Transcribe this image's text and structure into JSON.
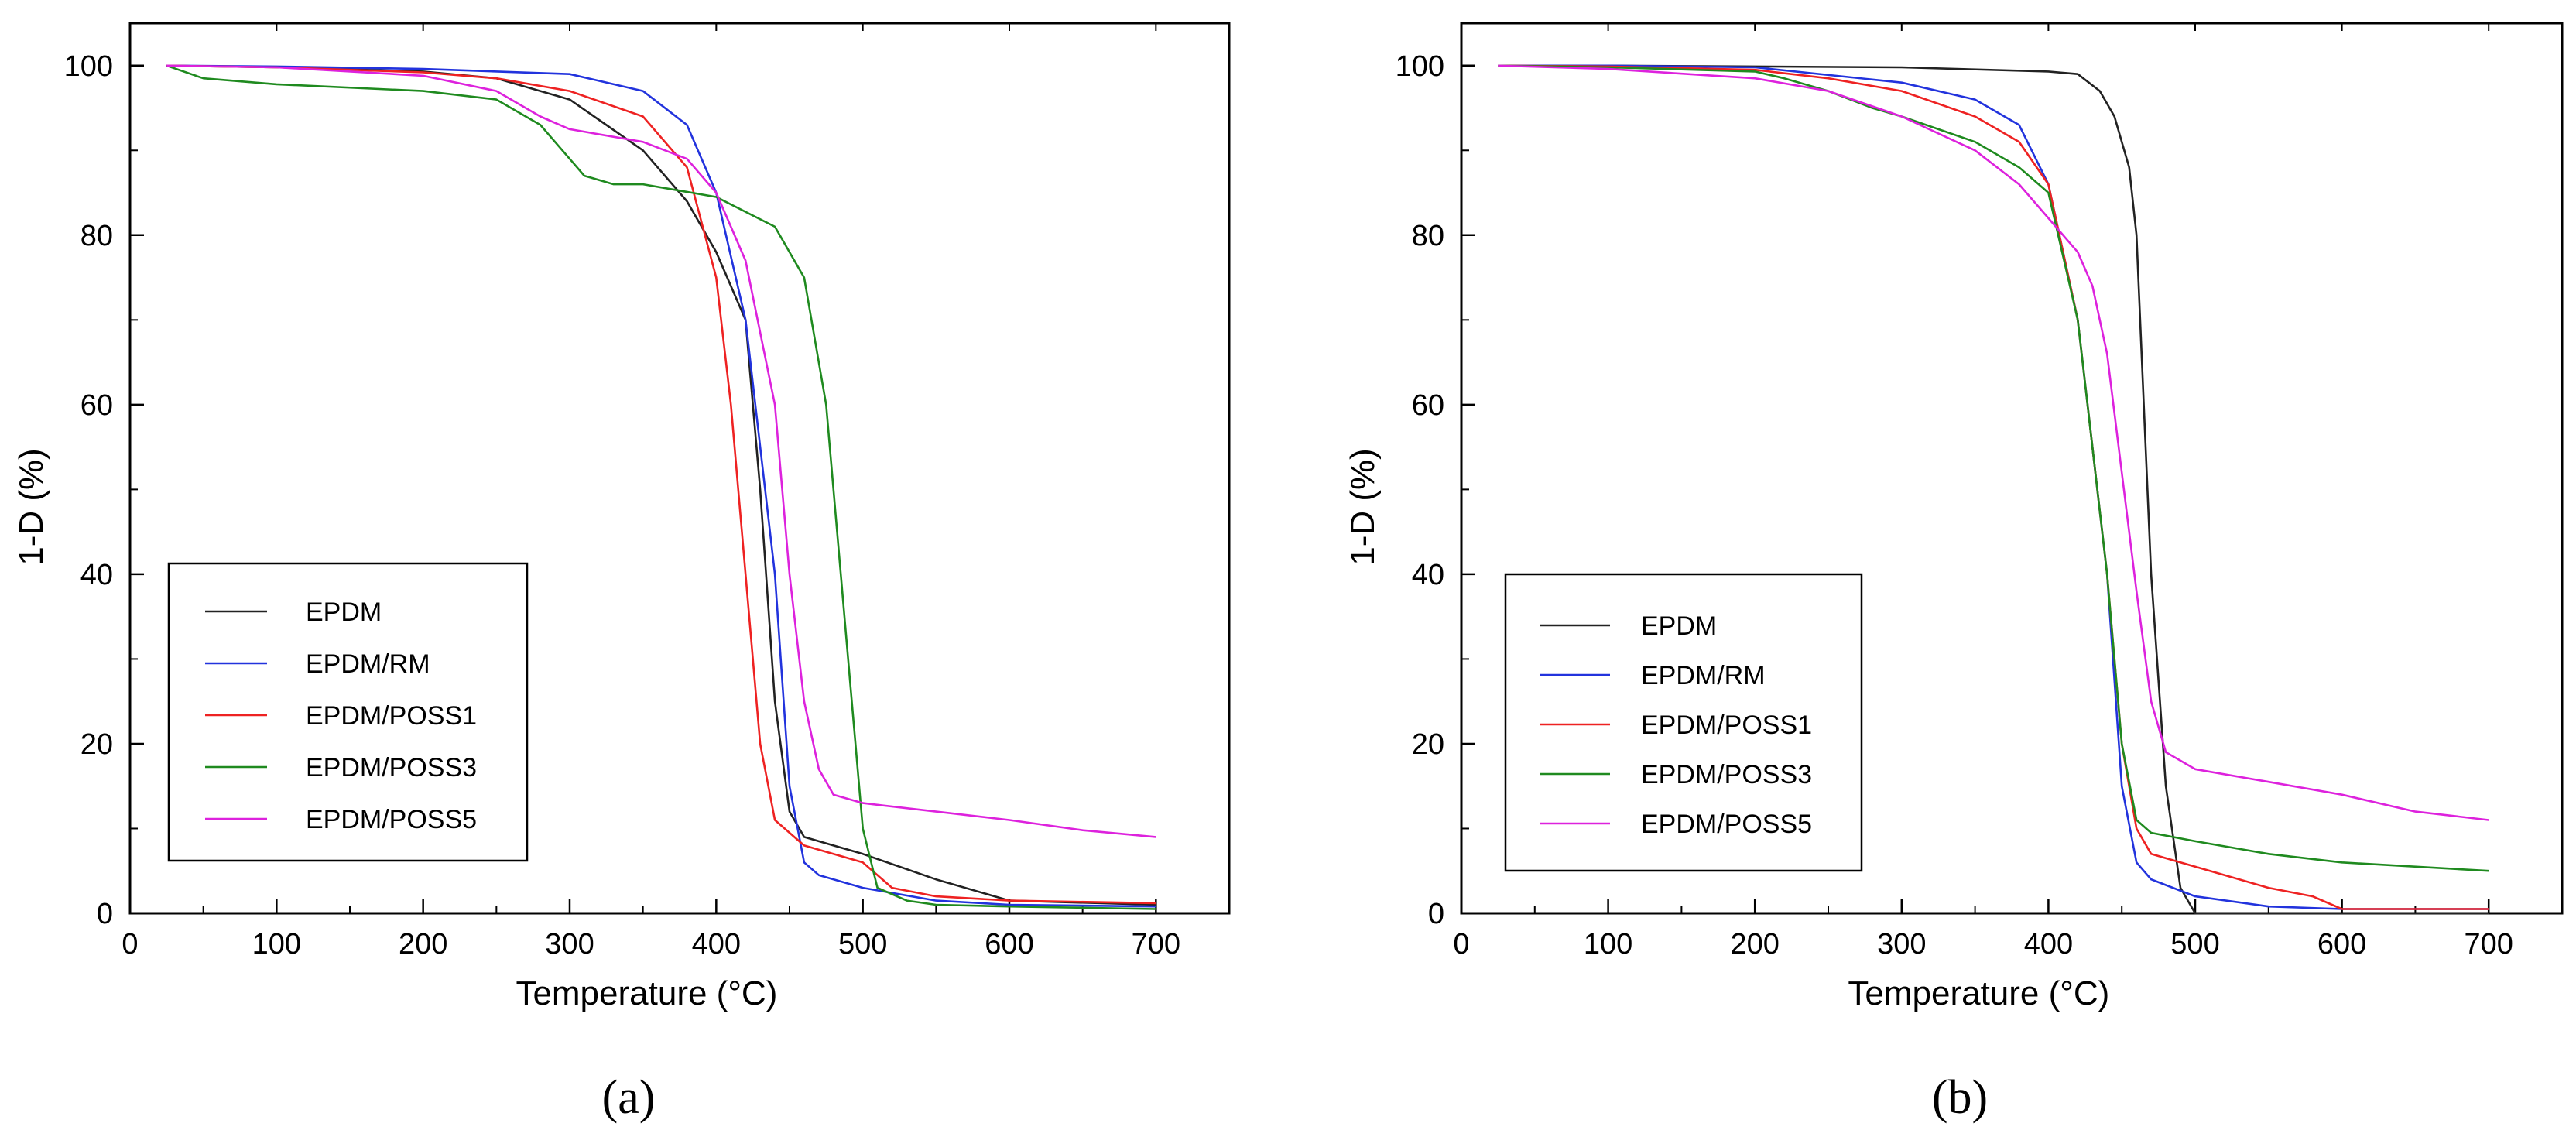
{
  "chart_data": [
    {
      "type": "line",
      "panel_label": "(a)",
      "xlabel": "Temperature (°C)",
      "ylabel": "1-D (%)",
      "xlim": [
        0,
        750
      ],
      "ylim": [
        0,
        105
      ],
      "xticks": [
        0,
        100,
        200,
        300,
        400,
        500,
        600,
        700
      ],
      "yticks": [
        0,
        20,
        40,
        60,
        80,
        100
      ],
      "legend_position": "lower-left",
      "series": [
        {
          "name": "EPDM",
          "color": "#222222",
          "dashed": false,
          "x": [
            25,
            100,
            200,
            250,
            300,
            350,
            380,
            400,
            420,
            430,
            440,
            450,
            460,
            480,
            500,
            550,
            600,
            700
          ],
          "y": [
            100,
            99.8,
            99.3,
            98.5,
            96,
            90,
            84,
            78,
            70,
            50,
            25,
            12,
            9,
            8,
            7,
            4,
            1.5,
            1
          ]
        },
        {
          "name": "EPDM/RM",
          "color": "#2233dd",
          "dashed": false,
          "x": [
            25,
            100,
            200,
            300,
            350,
            380,
            400,
            420,
            440,
            450,
            460,
            470,
            500,
            550,
            600,
            700
          ],
          "y": [
            100,
            99.9,
            99.6,
            99,
            97,
            93,
            85,
            70,
            40,
            15,
            6,
            4.5,
            3,
            1.5,
            1,
            0.8
          ]
        },
        {
          "name": "EPDM/POSS1",
          "color": "#ee2222",
          "dashed": false,
          "x": [
            25,
            100,
            200,
            250,
            300,
            350,
            380,
            400,
            410,
            420,
            430,
            440,
            460,
            500,
            520,
            550,
            600,
            700
          ],
          "y": [
            100,
            99.8,
            99.2,
            98.5,
            97,
            94,
            88,
            75,
            60,
            40,
            20,
            11,
            8,
            6,
            3,
            2,
            1.5,
            1.2
          ]
        },
        {
          "name": "EPDM/POSS3",
          "color": "#1f8a1f",
          "dashed": false,
          "x": [
            25,
            50,
            100,
            200,
            250,
            280,
            300,
            310,
            330,
            350,
            400,
            440,
            460,
            475,
            490,
            500,
            510,
            530,
            550,
            600,
            700
          ],
          "y": [
            100,
            98.5,
            97.8,
            97,
            96,
            93,
            89,
            87,
            86,
            86,
            84.5,
            81,
            75,
            60,
            30,
            10,
            3,
            1.5,
            1,
            0.8,
            0.5
          ]
        },
        {
          "name": "EPDM/POSS5",
          "color": "#dd22dd",
          "dashed": false,
          "x": [
            25,
            100,
            200,
            250,
            280,
            300,
            350,
            380,
            400,
            420,
            440,
            450,
            460,
            470,
            480,
            500,
            550,
            600,
            650,
            700
          ],
          "y": [
            100,
            99.8,
            98.8,
            97,
            94,
            92.5,
            91,
            89,
            85,
            77,
            60,
            40,
            25,
            17,
            14,
            13,
            12,
            11,
            9.8,
            9
          ]
        }
      ]
    },
    {
      "type": "line",
      "panel_label": "(b)",
      "xlabel": "Temperature (°C)",
      "ylabel": "1-D (%)",
      "xlim": [
        0,
        750
      ],
      "ylim": [
        0,
        105
      ],
      "xticks": [
        0,
        100,
        200,
        300,
        400,
        500,
        600,
        700
      ],
      "yticks": [
        0,
        20,
        40,
        60,
        80,
        100
      ],
      "legend_position": "lower-left",
      "series": [
        {
          "name": "EPDM",
          "color": "#222222",
          "dashed": false,
          "x": [
            25,
            100,
            200,
            300,
            400,
            420,
            435,
            445,
            455,
            460,
            465,
            470,
            480,
            490,
            500,
            700
          ],
          "y": [
            100,
            100,
            99.9,
            99.8,
            99.3,
            99,
            97,
            94,
            88,
            80,
            60,
            40,
            15,
            3,
            0,
            0
          ]
        },
        {
          "name": "EPDM/RM",
          "color": "#2233dd",
          "dashed": false,
          "x": [
            25,
            100,
            200,
            300,
            350,
            380,
            400,
            420,
            440,
            450,
            460,
            470,
            500,
            550,
            600,
            700
          ],
          "y": [
            100,
            100,
            99.8,
            98,
            96,
            93,
            86,
            70,
            40,
            15,
            6,
            4,
            2,
            0.8,
            0.5,
            0.5
          ]
        },
        {
          "name": "EPDM/POSS1",
          "color": "#ee2222",
          "dashed": false,
          "x": [
            25,
            100,
            200,
            250,
            300,
            350,
            380,
            400,
            420,
            440,
            450,
            460,
            470,
            500,
            550,
            580,
            600,
            700
          ],
          "y": [
            100,
            99.9,
            99.5,
            98.5,
            97,
            94,
            91,
            86,
            70,
            40,
            20,
            10,
            7,
            5.5,
            3,
            2,
            0.5,
            0.5
          ]
        },
        {
          "name": "EPDM/POSS3",
          "color": "#1f8a1f",
          "dashed": false,
          "x": [
            25,
            100,
            200,
            220,
            250,
            280,
            300,
            350,
            380,
            400,
            420,
            440,
            450,
            460,
            470,
            500,
            550,
            600,
            700
          ],
          "y": [
            100,
            99.8,
            99.3,
            98.5,
            97,
            95,
            94,
            91,
            88,
            85,
            70,
            40,
            20,
            11,
            9.5,
            8.5,
            7,
            6,
            5
          ]
        },
        {
          "name": "EPDM/POSS5",
          "color": "#dd22dd",
          "dashed": false,
          "x": [
            25,
            100,
            200,
            250,
            300,
            350,
            380,
            400,
            415,
            420,
            430,
            440,
            450,
            460,
            470,
            480,
            500,
            550,
            600,
            650,
            700
          ],
          "y": [
            100,
            99.6,
            98.5,
            97,
            94,
            90,
            86,
            82,
            79,
            78,
            74,
            66,
            52,
            38,
            25,
            19,
            17,
            15.5,
            14,
            12,
            11
          ]
        }
      ]
    }
  ]
}
